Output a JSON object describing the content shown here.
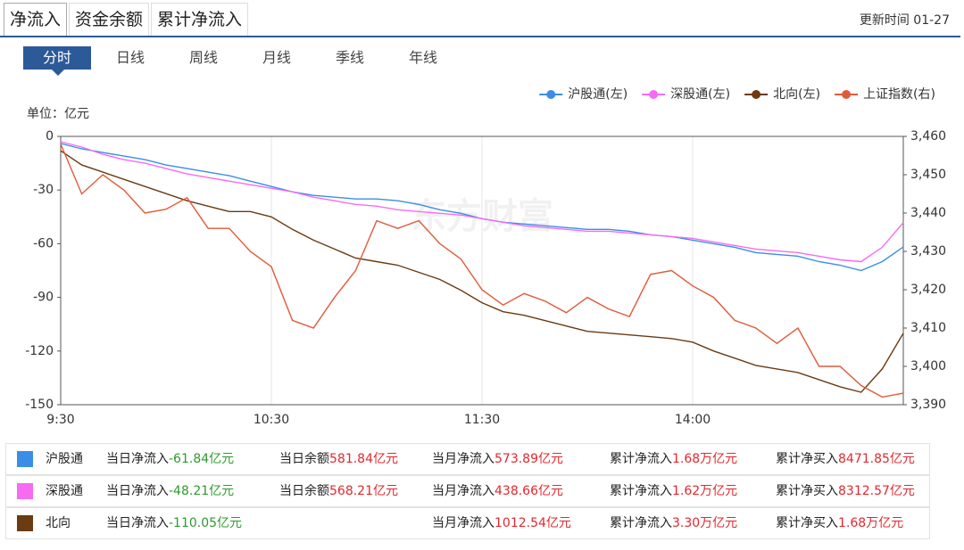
{
  "tabs": [
    "净流入",
    "资金余额",
    "累计净流入"
  ],
  "update_time": "更新时间 01-27",
  "periods": [
    "分时",
    "日线",
    "周线",
    "月线",
    "季线",
    "年线"
  ],
  "chart_data": {
    "type": "line",
    "unit_label": "单位：亿元",
    "watermark": "东方财富",
    "categories": [
      "9:30",
      null,
      null,
      null,
      null,
      null,
      null,
      null,
      null,
      null,
      "10:30",
      null,
      null,
      null,
      null,
      null,
      null,
      null,
      null,
      null,
      "11:30",
      null,
      null,
      null,
      null,
      null,
      null,
      null,
      null,
      null,
      "14:00",
      null,
      null,
      null,
      null,
      null,
      null,
      null,
      null,
      null,
      null
    ],
    "series": [
      {
        "name": "沪股通(左)",
        "color": "#3a8ee6",
        "values": [
          -4,
          -7,
          -9,
          -11,
          -13,
          -16,
          -18,
          -20,
          -22,
          -25,
          -28,
          -31,
          -33,
          -34,
          -35,
          -35,
          -36,
          -38,
          -41,
          -43,
          -46,
          -48,
          -49,
          -50,
          -51,
          -52,
          -52,
          -53,
          -55,
          -56,
          -58,
          -60,
          -62,
          -65,
          -66,
          -67,
          -70,
          -72,
          -75,
          -70,
          -61.84
        ]
      },
      {
        "name": "深股通(左)",
        "color": "#f76bf0",
        "values": [
          -3,
          -6,
          -10,
          -13,
          -15,
          -18,
          -21,
          -23,
          -25,
          -27,
          -29,
          -31,
          -34,
          -36,
          -38,
          -39,
          -41,
          -42,
          -43,
          -44,
          -46,
          -48,
          -50,
          -51,
          -52,
          -53,
          -53,
          -54,
          -55,
          -56,
          -57,
          -59,
          -61,
          -63,
          -64,
          -65,
          -67,
          -69,
          -70,
          -62,
          -48.21
        ]
      },
      {
        "name": "北向(左)",
        "color": "#6b3b12",
        "values": [
          -8,
          -16,
          -20,
          -24,
          -28,
          -32,
          -36,
          -39,
          -42,
          -42,
          -45,
          -52,
          -58,
          -63,
          -68,
          -70,
          -72,
          -76,
          -80,
          -86,
          -93,
          -98,
          -100,
          -103,
          -106,
          -109,
          -110,
          -111,
          -112,
          -113,
          -115,
          -120,
          -124,
          -128,
          -130,
          -132,
          -136,
          -140,
          -143,
          -130,
          -110.05
        ]
      },
      {
        "name": "上证指数(右)",
        "color": "#e05a3a",
        "axis": "y2",
        "values": [
          3458,
          3445,
          3450,
          3446,
          3440,
          3441,
          3444,
          3436,
          3436,
          3430,
          3426,
          3412,
          3410,
          3418,
          3425,
          3438,
          3436,
          3438,
          3432,
          3428,
          3420,
          3416,
          3419,
          3417,
          3414,
          3418,
          3415,
          3413,
          3424,
          3425,
          3421,
          3418,
          3412,
          3410,
          3406,
          3410,
          3400,
          3400,
          3395,
          3392,
          3393
        ]
      }
    ],
    "ylim": [
      -150,
      0
    ],
    "yticks": [
      0,
      -30,
      -60,
      -90,
      -120,
      -150
    ],
    "y2lim": [
      3390,
      3460
    ],
    "y2ticks": [
      {
        "value": 3460,
        "label": "3,460"
      },
      {
        "value": 3450,
        "label": "3,450"
      },
      {
        "value": 3440,
        "label": "3,440"
      },
      {
        "value": 3430,
        "label": "3,430"
      },
      {
        "value": 3420,
        "label": "3,420"
      },
      {
        "value": 3410,
        "label": "3,410"
      },
      {
        "value": 3400,
        "label": "3,400"
      },
      {
        "value": 3390,
        "label": "3,390"
      }
    ],
    "grid": true,
    "legend": "top-right"
  },
  "table": {
    "rows": [
      {
        "name": "沪股通",
        "color": "#3a8ee6",
        "cells": [
          {
            "label": "当日净流入",
            "value": "-61.84",
            "unit": "亿元"
          },
          {
            "label": "当日余额",
            "value": "581.84",
            "unit": "亿元"
          },
          {
            "label": "当月净流入",
            "value": "573.89",
            "unit": "亿元"
          },
          {
            "label": "累计净流入",
            "value": "1.68",
            "unit": "万亿元"
          },
          {
            "label": "累计净买入",
            "value": "8471.85",
            "unit": "亿元"
          }
        ]
      },
      {
        "name": "深股通",
        "color": "#f76bf0",
        "cells": [
          {
            "label": "当日净流入",
            "value": "-48.21",
            "unit": "亿元"
          },
          {
            "label": "当日余额",
            "value": "568.21",
            "unit": "亿元"
          },
          {
            "label": "当月净流入",
            "value": "438.66",
            "unit": "亿元"
          },
          {
            "label": "累计净流入",
            "value": "1.62",
            "unit": "万亿元"
          },
          {
            "label": "累计净买入",
            "value": "8312.57",
            "unit": "亿元"
          }
        ]
      },
      {
        "name": "北向",
        "color": "#6b3b12",
        "cells": [
          {
            "label": "当日净流入",
            "value": "-110.05",
            "unit": "亿元"
          },
          null,
          {
            "label": "当月净流入",
            "value": "1012.54",
            "unit": "亿元"
          },
          {
            "label": "累计净流入",
            "value": "3.30",
            "unit": "万亿元"
          },
          {
            "label": "累计净买入",
            "value": "1.68",
            "unit": "万亿元"
          }
        ]
      }
    ]
  }
}
